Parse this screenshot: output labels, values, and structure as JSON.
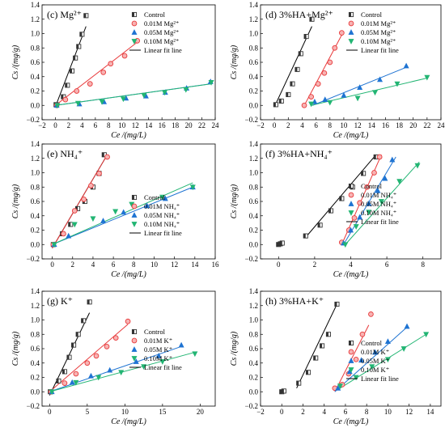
{
  "chart_data": [
    {
      "type": "scatter",
      "title": "(c) Mg²⁺",
      "xlabel": "Ce /(mg/L)",
      "ylabel": "Cs /(mg/g)",
      "xlim": [
        -2,
        24
      ],
      "ylim": [
        -0.2,
        1.4
      ],
      "xticks": [
        "−2",
        "0",
        "2",
        "4",
        "6",
        "8",
        "10",
        "12",
        "14",
        "16",
        "18",
        "20",
        "22",
        "24"
      ],
      "yticks": [
        "−0.2",
        "0.0",
        "0.2",
        "0.4",
        "0.6",
        "0.8",
        "1.0",
        "1.2",
        "1.4"
      ],
      "legend": {
        "position": "top-right",
        "entries": [
          "Control",
          "0.01M Mg²⁺",
          "0.05M Mg²⁺",
          "0.10M Mg²⁺",
          "Linear fit line"
        ]
      },
      "series": [
        {
          "name": "Control",
          "color": "#333333",
          "marker": "square",
          "x": [
            0.1,
            1.2,
            1.8,
            2.5,
            3.0,
            3.5,
            4.0,
            4.6
          ],
          "y": [
            0.01,
            0.12,
            0.28,
            0.48,
            0.66,
            0.82,
            0.99,
            1.25
          ],
          "fit": [
            [
              0,
              -0.02
            ],
            [
              4.6,
              1.1
            ]
          ]
        },
        {
          "name": "0.01M Mg²⁺",
          "color": "#e8393a",
          "marker": "circle",
          "x": [
            0.2,
            1.5,
            3.2,
            5.2,
            7.2,
            8.3,
            10.4,
            12.3
          ],
          "y": [
            0.0,
            0.08,
            0.2,
            0.3,
            0.46,
            0.58,
            0.69,
            0.9
          ],
          "fit": [
            [
              0,
              0.0
            ],
            [
              12.3,
              0.88
            ]
          ]
        },
        {
          "name": "0.05M Mg²⁺",
          "color": "#1e73d2",
          "marker": "triangle-up",
          "x": [
            0.2,
            3.6,
            7.3,
            10.6,
            13.6,
            16.5,
            19.7,
            23.3
          ],
          "y": [
            0.0,
            0.02,
            0.05,
            0.1,
            0.13,
            0.18,
            0.24,
            0.33
          ],
          "fit": [
            [
              0,
              0.0
            ],
            [
              23.3,
              0.3
            ]
          ]
        },
        {
          "name": "0.10M Mg²⁺",
          "color": "#22b573",
          "marker": "triangle-down",
          "x": [
            0.3,
            3.4,
            7.0,
            10.2,
            13.3,
            16.4,
            19.6,
            23.4
          ],
          "y": [
            0.0,
            0.03,
            0.05,
            0.09,
            0.14,
            0.18,
            0.22,
            0.32
          ],
          "fit": [
            [
              0,
              0.0
            ],
            [
              23.4,
              0.3
            ]
          ]
        }
      ]
    },
    {
      "type": "scatter",
      "title": "(d) 3%HA+Mg²⁺",
      "xlabel": "Ce /(mg/L)",
      "ylabel": "Cs /(mg/g)",
      "xlim": [
        -2,
        24
      ],
      "ylim": [
        -0.2,
        1.4
      ],
      "xticks": [
        "−2",
        "0",
        "2",
        "4",
        "6",
        "8",
        "10",
        "12",
        "14",
        "16",
        "18",
        "20",
        "22",
        "24"
      ],
      "yticks": [
        "−0.2",
        "0.0",
        "0.2",
        "0.4",
        "0.6",
        "0.8",
        "1.0",
        "1.2",
        "1.4"
      ],
      "legend": {
        "position": "top-right",
        "entries": [
          "Control",
          "0.01M Mg²⁺",
          "0.05M Mg²⁺",
          "0.10M Mg²⁺",
          "Linear fit line"
        ]
      },
      "series": [
        {
          "name": "Control",
          "color": "#333333",
          "marker": "square",
          "x": [
            0.2,
            1.0,
            2.0,
            2.6,
            3.3,
            3.8,
            4.6,
            5.4
          ],
          "y": [
            0.01,
            0.06,
            0.15,
            0.3,
            0.5,
            0.72,
            0.96,
            1.2
          ],
          "fit": [
            [
              0,
              -0.02
            ],
            [
              5.4,
              1.1
            ]
          ]
        },
        {
          "name": "0.01M Mg²⁺",
          "color": "#e8393a",
          "marker": "circle",
          "x": [
            4.3,
            5.3,
            6.3,
            7.2,
            8.0,
            8.7,
            9.7
          ],
          "y": [
            0.0,
            0.12,
            0.3,
            0.45,
            0.6,
            0.8,
            1.01
          ],
          "fit": [
            [
              4.2,
              -0.02
            ],
            [
              9.7,
              0.98
            ]
          ]
        },
        {
          "name": "0.05M Mg²⁺",
          "color": "#1e73d2",
          "marker": "triangle-up",
          "x": [
            5.8,
            7.3,
            10.0,
            12.3,
            15.2,
            19.0
          ],
          "y": [
            0.05,
            0.08,
            0.14,
            0.25,
            0.36,
            0.55
          ],
          "fit": [
            [
              5.5,
              0.0
            ],
            [
              19.0,
              0.53
            ]
          ]
        },
        {
          "name": "0.10M Mg²⁺",
          "color": "#22b573",
          "marker": "triangle-down",
          "x": [
            5.3,
            8.0,
            12.0,
            14.5,
            17.7,
            22.0
          ],
          "y": [
            0.02,
            0.04,
            0.1,
            0.18,
            0.3,
            0.39
          ],
          "fit": [
            [
              5.3,
              0.0
            ],
            [
              22.0,
              0.38
            ]
          ]
        }
      ]
    },
    {
      "type": "scatter",
      "title": "(e) NH₄⁺",
      "xlabel": "Ce /(mg/L)",
      "ylabel": "Cs /(mg/g)",
      "xlim": [
        -1,
        16
      ],
      "ylim": [
        -0.2,
        1.4
      ],
      "xticks": [
        "0",
        "2",
        "4",
        "6",
        "8",
        "10",
        "12",
        "14",
        "16"
      ],
      "yticks": [
        "−0.2",
        "0.0",
        "0.2",
        "0.4",
        "0.6",
        "0.8",
        "1.0",
        "1.2",
        "1.4"
      ],
      "legend": {
        "position": "bottom-right",
        "entries": [
          "Control",
          "0.01M NH₄⁺",
          "0.05M NH₄⁺",
          "0.10M NH₄⁺",
          "Linear fit line"
        ]
      },
      "series": [
        {
          "name": "Control",
          "color": "#333333",
          "marker": "square",
          "x": [
            0.1,
            1.0,
            1.8,
            2.5,
            3.2,
            4.0,
            4.6,
            5.1
          ],
          "y": [
            0.0,
            0.15,
            0.28,
            0.5,
            0.6,
            0.8,
            0.99,
            1.25
          ],
          "fit": [
            [
              0,
              -0.05
            ],
            [
              5.4,
              1.25
            ]
          ]
        },
        {
          "name": "0.01M NH₄⁺",
          "color": "#e8393a",
          "marker": "circle",
          "x": [
            0.1,
            1.1,
            2.2,
            3.1,
            3.8,
            4.6,
            5.4
          ],
          "y": [
            0.0,
            0.15,
            0.47,
            0.63,
            0.82,
            0.99,
            1.22
          ],
          "fit": [
            [
              0,
              -0.05
            ],
            [
              5.4,
              1.25
            ]
          ]
        },
        {
          "name": "0.05M NH₄⁺",
          "color": "#1e73d2",
          "marker": "triangle-up",
          "x": [
            0.2,
            1.6,
            5.0,
            7.0,
            9.3,
            11.1,
            13.8
          ],
          "y": [
            0.0,
            0.12,
            0.33,
            0.45,
            0.54,
            0.64,
            0.8
          ],
          "fit": [
            [
              0,
              0.0
            ],
            [
              13.8,
              0.8
            ]
          ]
        },
        {
          "name": "0.10M NH₄⁺",
          "color": "#22b573",
          "marker": "triangle-down",
          "x": [
            0.2,
            2.2,
            4.0,
            6.2,
            7.8,
            10.8,
            13.8
          ],
          "y": [
            0.0,
            0.28,
            0.36,
            0.46,
            0.56,
            0.66,
            0.8
          ],
          "fit": [
            [
              0,
              0.0
            ],
            [
              13.8,
              0.86
            ]
          ]
        }
      ]
    },
    {
      "type": "scatter",
      "title": "(f) 3%HA+NH₄⁺",
      "xlabel": "Ce /(mg/L)",
      "ylabel": "Cs /(mg/g)",
      "xlim": [
        -1,
        9
      ],
      "ylim": [
        -0.2,
        1.4
      ],
      "xticks": [
        "0",
        "2",
        "4",
        "6",
        "8"
      ],
      "yticks": [
        "−0.2",
        "0.0",
        "0.2",
        "0.4",
        "0.6",
        "0.8",
        "1.0",
        "1.2",
        "1.4"
      ],
      "legend": {
        "position": "bottom-right",
        "entries": [
          "Control",
          "0.01M NH₄⁺",
          "0.05M NH₄⁺",
          "0.10M NH₄⁺",
          "Linear fit line"
        ]
      },
      "series": [
        {
          "name": "Control",
          "color": "#333333",
          "marker": "square",
          "x": [
            0.0,
            0.1,
            0.2,
            1.5,
            2.3,
            2.9,
            3.5,
            4.1,
            4.7,
            5.4
          ],
          "y": [
            0.0,
            0.01,
            0.02,
            0.12,
            0.27,
            0.47,
            0.64,
            0.8,
            0.99,
            1.22
          ],
          "fit": [
            [
              1.5,
              0.1
            ],
            [
              5.4,
              1.25
            ]
          ]
        },
        {
          "name": "0.01M NH₄⁺",
          "color": "#e8393a",
          "marker": "circle",
          "x": [
            3.5,
            3.9,
            4.2,
            4.5,
            4.9,
            5.3,
            5.6
          ],
          "y": [
            0.03,
            0.2,
            0.37,
            0.58,
            0.8,
            1.0,
            1.22
          ],
          "fit": [
            [
              3.5,
              0.0
            ],
            [
              5.7,
              1.25
            ]
          ]
        },
        {
          "name": "0.05M NH₄⁺",
          "color": "#1e73d2",
          "marker": "triangle-up",
          "x": [
            3.6,
            4.0,
            4.5,
            5.0,
            5.5,
            5.9,
            6.3
          ],
          "y": [
            0.02,
            0.2,
            0.38,
            0.57,
            0.75,
            0.92,
            1.18
          ],
          "fit": [
            [
              3.6,
              0.0
            ],
            [
              6.5,
              1.22
            ]
          ]
        },
        {
          "name": "0.10M NH₄⁺",
          "color": "#22b573",
          "marker": "triangle-down",
          "x": [
            3.7,
            4.3,
            5.0,
            5.7,
            6.7,
            7.7
          ],
          "y": [
            0.0,
            0.25,
            0.45,
            0.6,
            0.88,
            1.1
          ],
          "fit": [
            [
              3.7,
              0.0
            ],
            [
              7.8,
              1.15
            ]
          ]
        }
      ]
    },
    {
      "type": "scatter",
      "title": "(g) K⁺",
      "xlabel": "Ce /(mg/L)",
      "ylabel": "Cs /(mg/g)",
      "xlim": [
        -1,
        22
      ],
      "ylim": [
        -0.2,
        1.4
      ],
      "xticks": [
        "0",
        "5",
        "10",
        "15",
        "20"
      ],
      "yticks": [
        "−0.2",
        "0.0",
        "0.2",
        "0.4",
        "0.6",
        "0.8",
        "1.0",
        "1.2",
        "1.4"
      ],
      "legend": {
        "position": "right",
        "entries": [
          "Control",
          "0.01M K⁺",
          "0.05M K⁺",
          "0.10M K⁺",
          "Linear fit line"
        ]
      },
      "series": [
        {
          "name": "Control",
          "color": "#333333",
          "marker": "square",
          "x": [
            0.1,
            1.2,
            2.0,
            2.6,
            3.2,
            3.8,
            4.5,
            5.3
          ],
          "y": [
            0.0,
            0.15,
            0.28,
            0.48,
            0.65,
            0.8,
            0.99,
            1.25
          ],
          "fit": [
            [
              0,
              -0.05
            ],
            [
              5.3,
              1.1
            ]
          ]
        },
        {
          "name": "0.01M K⁺",
          "color": "#e8393a",
          "marker": "circle",
          "x": [
            0.2,
            2.0,
            3.5,
            5.0,
            6.2,
            7.6,
            8.8,
            10.4
          ],
          "y": [
            0.0,
            0.12,
            0.25,
            0.4,
            0.5,
            0.63,
            0.75,
            0.98
          ],
          "fit": [
            [
              0,
              0.0
            ],
            [
              10.4,
              0.94
            ]
          ]
        },
        {
          "name": "0.05M K⁺",
          "color": "#1e73d2",
          "marker": "triangle-up",
          "x": [
            0.3,
            3.0,
            5.5,
            8.0,
            11.5,
            14.5,
            17.5
          ],
          "y": [
            0.0,
            0.13,
            0.22,
            0.3,
            0.42,
            0.5,
            0.65
          ],
          "fit": [
            [
              0,
              0.0
            ],
            [
              17.5,
              0.63
            ]
          ]
        },
        {
          "name": "0.10M K⁺",
          "color": "#22b573",
          "marker": "triangle-down",
          "x": [
            0.3,
            3.5,
            6.5,
            9.5,
            12.5,
            15.0,
            19.3
          ],
          "y": [
            0.0,
            0.13,
            0.2,
            0.27,
            0.35,
            0.42,
            0.53
          ],
          "fit": [
            [
              0,
              0.0
            ],
            [
              19.3,
              0.55
            ]
          ]
        }
      ]
    },
    {
      "type": "scatter",
      "title": "(h) 3%HA+K⁺",
      "xlabel": "Ce /(mg/L)",
      "ylabel": "Cs /(mg/g)",
      "xlim": [
        -2,
        15
      ],
      "ylim": [
        -0.2,
        1.4
      ],
      "xticks": [
        "−2",
        "0",
        "2",
        "4",
        "6",
        "8",
        "10",
        "12",
        "14"
      ],
      "yticks": [
        "−0.2",
        "0.0",
        "0.2",
        "0.4",
        "0.6",
        "0.8",
        "1.0",
        "1.2",
        "1.4"
      ],
      "legend": {
        "position": "bottom-right",
        "entries": [
          "Control",
          "0.01M K⁺",
          "0.05M K⁺",
          "0.10M K⁺",
          "Linear fit line"
        ]
      },
      "series": [
        {
          "name": "Control",
          "color": "#333333",
          "marker": "square",
          "x": [
            0.0,
            0.2,
            1.6,
            2.5,
            3.2,
            3.8,
            4.4,
            5.2
          ],
          "y": [
            0.0,
            0.01,
            0.12,
            0.27,
            0.47,
            0.64,
            0.8,
            1.22
          ],
          "fit": [
            [
              1.4,
              0.05
            ],
            [
              5.3,
              1.25
            ]
          ]
        },
        {
          "name": "0.01M K⁺",
          "color": "#e8393a",
          "marker": "circle",
          "x": [
            5.0,
            5.7,
            6.3,
            7.0,
            7.6,
            8.4
          ],
          "y": [
            0.05,
            0.1,
            0.25,
            0.45,
            0.8,
            1.08
          ],
          "fit": [
            [
              5.0,
              0.0
            ],
            [
              8.2,
              0.93
            ]
          ]
        },
        {
          "name": "0.05M K⁺",
          "color": "#1e73d2",
          "marker": "triangle-up",
          "x": [
            5.3,
            6.4,
            7.5,
            8.8,
            10.0,
            11.8
          ],
          "y": [
            0.05,
            0.28,
            0.44,
            0.55,
            0.7,
            0.91
          ],
          "fit": [
            [
              5.0,
              0.0
            ],
            [
              11.8,
              0.9
            ]
          ]
        },
        {
          "name": "0.10M K⁺",
          "color": "#22b573",
          "marker": "triangle-down",
          "x": [
            5.5,
            7.0,
            8.5,
            10.0,
            11.5,
            13.6
          ],
          "y": [
            0.08,
            0.2,
            0.35,
            0.45,
            0.6,
            0.8
          ],
          "fit": [
            [
              5.5,
              0.05
            ],
            [
              13.6,
              0.8
            ]
          ]
        }
      ]
    }
  ]
}
